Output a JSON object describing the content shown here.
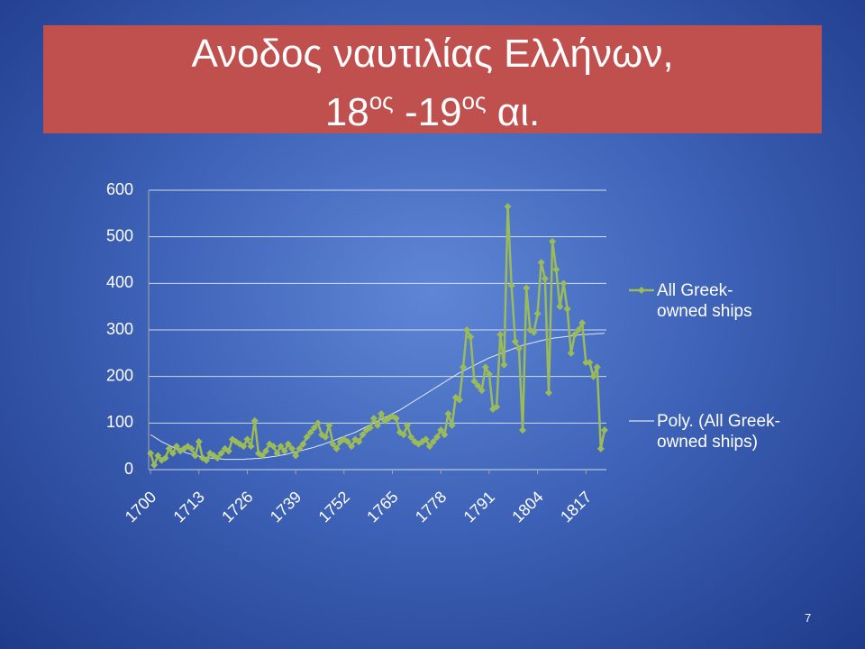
{
  "chart_data": {
    "type": "line",
    "title": "Ανοδος ναυτιλίας Ελλήνων,",
    "subtitle_parts": [
      "18",
      "ος",
      "-19",
      "ος",
      "αι."
    ],
    "categories": [
      "1700",
      null,
      null,
      null,
      null,
      null,
      null,
      null,
      null,
      null,
      null,
      null,
      null,
      "1713",
      null,
      null,
      null,
      null,
      null,
      null,
      null,
      null,
      null,
      null,
      null,
      null,
      "1726",
      null,
      null,
      null,
      null,
      null,
      null,
      null,
      null,
      null,
      null,
      null,
      null,
      "1739",
      null,
      null,
      null,
      null,
      null,
      null,
      null,
      null,
      null,
      null,
      null,
      null,
      "1752",
      null,
      null,
      null,
      null,
      null,
      null,
      null,
      null,
      null,
      null,
      null,
      null,
      "1765",
      null,
      null,
      null,
      null,
      null,
      null,
      null,
      null,
      null,
      null,
      null,
      null,
      "1778",
      null,
      null,
      null,
      null,
      null,
      null,
      null,
      null,
      null,
      null,
      null,
      null,
      "1791",
      null,
      null,
      null,
      null,
      null,
      null,
      null,
      null,
      null,
      null,
      null,
      null,
      "1804",
      null,
      null,
      null,
      null,
      null,
      null,
      null,
      null,
      null,
      null,
      null,
      null,
      "1817",
      null,
      null,
      null,
      null,
      null
    ],
    "series": [
      {
        "name": "All Greek-owned ships",
        "color": "#9bbb59",
        "marker": "diamond",
        "values": [
          35,
          10,
          30,
          20,
          25,
          45,
          35,
          50,
          40,
          45,
          50,
          45,
          30,
          60,
          25,
          20,
          35,
          30,
          25,
          35,
          45,
          40,
          65,
          60,
          55,
          50,
          65,
          50,
          105,
          35,
          30,
          40,
          55,
          50,
          35,
          50,
          40,
          55,
          45,
          30,
          45,
          55,
          70,
          80,
          90,
          100,
          75,
          70,
          95,
          55,
          45,
          60,
          65,
          60,
          50,
          65,
          60,
          75,
          85,
          90,
          110,
          95,
          120,
          105,
          110,
          115,
          110,
          80,
          75,
          95,
          70,
          60,
          55,
          60,
          65,
          50,
          60,
          70,
          85,
          75,
          120,
          95,
          155,
          150,
          220,
          300,
          285,
          190,
          180,
          170,
          220,
          205,
          130,
          135,
          290,
          225,
          565,
          395,
          275,
          260,
          85,
          390,
          300,
          295,
          335,
          445,
          410,
          165,
          490,
          430,
          350,
          400,
          345,
          250,
          290,
          300,
          315,
          230,
          230,
          200,
          220,
          45,
          85
        ]
      },
      {
        "name": "Poly. (All Greek-owned ships)",
        "color": "#ffffff",
        "marker": "none",
        "values": [
          75,
          70,
          65,
          60,
          56,
          52,
          48,
          44,
          41,
          38,
          35,
          33,
          31,
          29,
          27,
          26,
          25,
          24,
          23,
          23,
          22,
          22,
          22,
          22,
          22,
          22,
          23,
          23,
          24,
          24,
          25,
          26,
          27,
          28,
          29,
          31,
          32,
          34,
          36,
          38,
          40,
          42,
          44,
          46,
          48,
          51,
          53,
          56,
          59,
          62,
          65,
          68,
          71,
          74,
          77,
          80,
          84,
          88,
          92,
          96,
          100,
          104,
          108,
          112,
          116,
          120,
          124,
          128,
          133,
          138,
          143,
          148,
          153,
          158,
          163,
          168,
          173,
          178,
          183,
          188,
          193,
          198,
          203,
          208,
          212,
          216,
          220,
          224,
          228,
          232,
          236,
          240,
          243,
          246,
          249,
          252,
          255,
          258,
          261,
          264,
          267,
          269,
          271,
          273,
          275,
          277,
          279,
          280,
          282,
          283,
          284,
          285,
          286,
          287,
          288,
          289,
          290,
          290,
          291,
          291,
          292,
          292,
          293
        ]
      }
    ],
    "ylim": [
      0,
      600
    ],
    "yticks": [
      0,
      100,
      200,
      300,
      400,
      500,
      600
    ],
    "grid": true
  },
  "page_number": "7"
}
